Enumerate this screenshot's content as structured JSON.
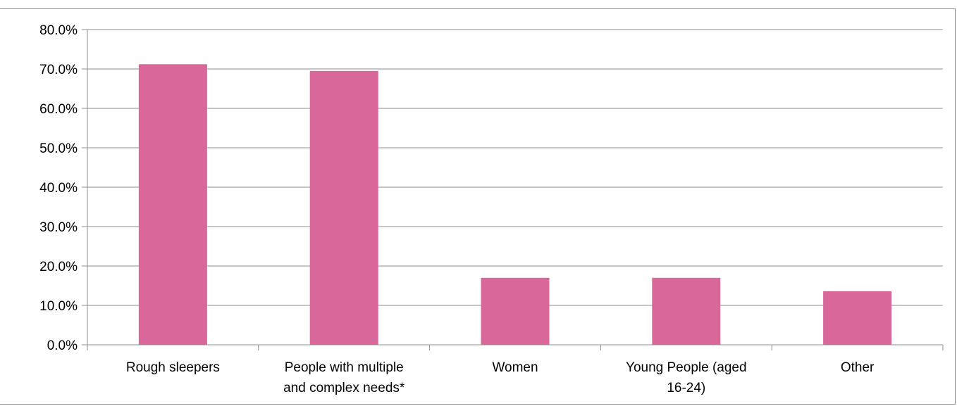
{
  "chart_data": {
    "type": "bar",
    "title": "",
    "xlabel": "",
    "ylabel": "",
    "categories": [
      [
        "Rough sleepers"
      ],
      [
        "People with multiple",
        "and complex needs*"
      ],
      [
        "Women"
      ],
      [
        "Young People (aged",
        "16-24)"
      ],
      [
        "Other"
      ]
    ],
    "values": [
      71.2,
      69.5,
      17.0,
      17.0,
      13.6
    ],
    "ylim": [
      0,
      80
    ],
    "yticks": [
      "0.0%",
      "10.0%",
      "20.0%",
      "30.0%",
      "40.0%",
      "50.0%",
      "60.0%",
      "70.0%",
      "80.0%"
    ],
    "grid": true,
    "legend": "none",
    "bar_color": "#d9679a",
    "grid_color": "#8c8c8c"
  }
}
